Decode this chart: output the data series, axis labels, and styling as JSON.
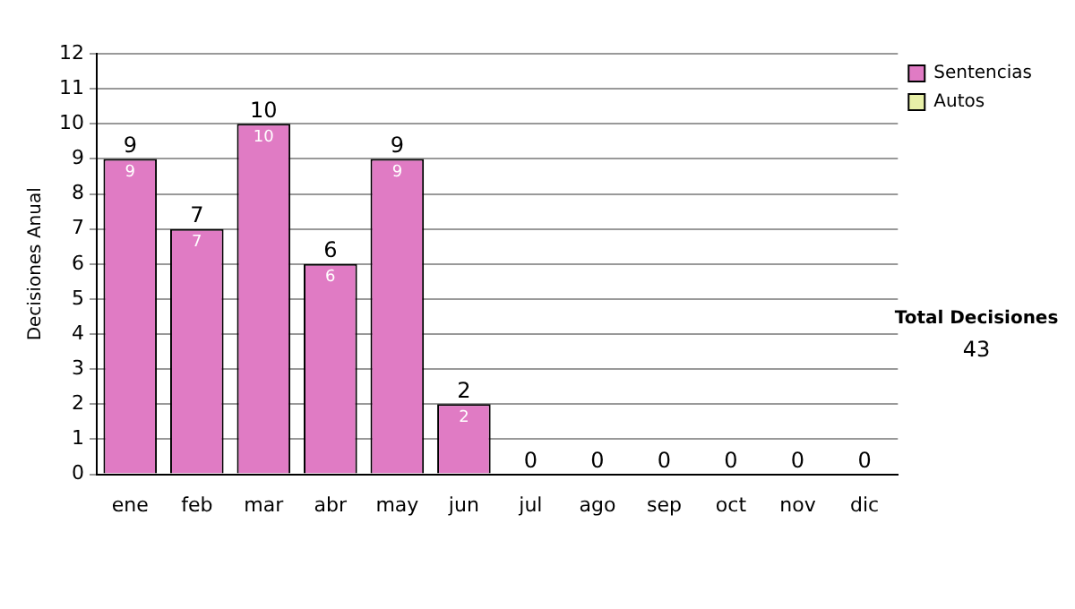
{
  "chart_data": {
    "type": "bar",
    "stacked": true,
    "ylabel": "Decisiones Anual",
    "categories": [
      "ene",
      "feb",
      "mar",
      "abr",
      "may",
      "jun",
      "jul",
      "ago",
      "sep",
      "oct",
      "nov",
      "dic"
    ],
    "series": [
      {
        "name": "Sentencias",
        "color": "#e07bc4",
        "values": [
          9,
          7,
          10,
          6,
          9,
          2,
          0,
          0,
          0,
          0,
          0,
          0
        ],
        "value_labels": [
          "9",
          "7",
          "10",
          "6",
          "9",
          "2",
          null,
          null,
          null,
          null,
          null,
          null
        ]
      },
      {
        "name": "Autos",
        "color": "#e8f0a8",
        "values": [
          0,
          0,
          0,
          0,
          0,
          0,
          0,
          0,
          0,
          0,
          0,
          0
        ]
      }
    ],
    "totals": [
      "9",
      "7",
      "10",
      "6",
      "9",
      "2",
      "0",
      "0",
      "0",
      "0",
      "0",
      "0"
    ],
    "ylim": [
      0,
      12
    ],
    "yticks": [
      0,
      1,
      2,
      3,
      4,
      5,
      6,
      7,
      8,
      9,
      10,
      11,
      12
    ],
    "grid": "y",
    "legend": "right",
    "annotations": [
      "Total Decisiones",
      "43"
    ]
  }
}
